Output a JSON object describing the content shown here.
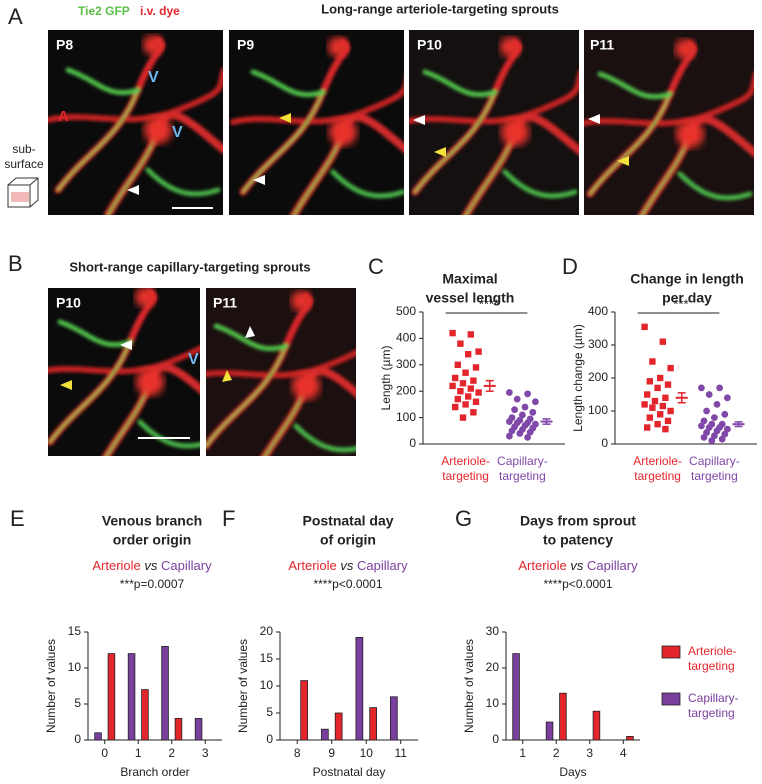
{
  "figure": {
    "A": {
      "letter": "A",
      "title": "Long-range arteriole-targeting sprouts",
      "stain_green": "Tie2 GFP",
      "stain_red": "i.v. dye",
      "side_label": [
        "sub-",
        "surface"
      ],
      "images": [
        {
          "age": "P8",
          "labels": [
            "V",
            "V",
            "A"
          ]
        },
        {
          "age": "P9"
        },
        {
          "age": "P10"
        },
        {
          "age": "P11"
        }
      ]
    },
    "B": {
      "letter": "B",
      "title": "Short-range capillary-targeting sprouts",
      "images": [
        {
          "age": "P10",
          "labels": [
            "V"
          ]
        },
        {
          "age": "P11"
        }
      ]
    }
  },
  "chart_data": [
    {
      "panel": "C",
      "type": "dot",
      "title": [
        "Maximal",
        "vessel length"
      ],
      "ylabel": "Length (µm)",
      "significance": "****",
      "ylim": [
        0,
        500
      ],
      "yticks": [
        0,
        100,
        200,
        300,
        400,
        500
      ],
      "categories": [
        [
          "Arteriole-",
          "targeting"
        ],
        [
          "Capillary-",
          "targeting"
        ]
      ],
      "groups": [
        {
          "color": "#e3262c",
          "marker": "square",
          "values": [
            420,
            415,
            380,
            350,
            340,
            300,
            290,
            270,
            250,
            240,
            230,
            220,
            210,
            200,
            195,
            180,
            170,
            160,
            150,
            140,
            120,
            100
          ],
          "mean": 220,
          "error": 20
        },
        {
          "color": "#8048a8",
          "marker": "circle",
          "values": [
            195,
            190,
            170,
            160,
            140,
            130,
            120,
            110,
            100,
            95,
            90,
            85,
            80,
            80,
            75,
            70,
            65,
            60,
            55,
            50,
            45,
            40,
            30,
            25
          ],
          "mean": 85,
          "error": 10
        }
      ]
    },
    {
      "panel": "D",
      "type": "dot",
      "title": [
        "Change in length",
        "per day"
      ],
      "ylabel": "Length change (µm)",
      "significance": "***",
      "ylim": [
        0,
        400
      ],
      "yticks": [
        0,
        100,
        200,
        300,
        400
      ],
      "categories": [
        [
          "Arteriole-",
          "targeting"
        ],
        [
          "Capillary-",
          "targeting"
        ]
      ],
      "groups": [
        {
          "color": "#e3262c",
          "marker": "square",
          "values": [
            355,
            310,
            250,
            230,
            200,
            190,
            180,
            170,
            150,
            140,
            130,
            120,
            115,
            110,
            100,
            90,
            80,
            70,
            60,
            50,
            45
          ],
          "mean": 140,
          "error": 15
        },
        {
          "color": "#8048a8",
          "marker": "circle",
          "values": [
            170,
            170,
            150,
            140,
            120,
            100,
            90,
            80,
            70,
            60,
            60,
            55,
            50,
            50,
            45,
            40,
            35,
            30,
            25,
            20,
            15,
            10
          ],
          "mean": 60,
          "error": 7
        }
      ]
    },
    {
      "panel": "E",
      "type": "bar",
      "title": [
        "Venous branch",
        "order origin"
      ],
      "comparison": [
        "Arteriole",
        "vs",
        "Capillary"
      ],
      "p_value": "***p=0.0007",
      "xlabel": "Branch order",
      "ylabel": "Number of values",
      "ylim": [
        0,
        15
      ],
      "yticks": [
        0,
        5,
        10,
        15
      ],
      "categories": [
        "0",
        "1",
        "2",
        "3"
      ],
      "series": [
        {
          "color": "#e3262c",
          "values": [
            12,
            7,
            3,
            0
          ]
        },
        {
          "color": "#7a3f9d",
          "values": [
            1,
            12,
            13,
            3
          ]
        }
      ]
    },
    {
      "panel": "F",
      "type": "bar",
      "title": [
        "Postnatal day",
        "of origin"
      ],
      "comparison": [
        "Arteriole",
        "vs",
        "Capillary"
      ],
      "p_value": "****p<0.0001",
      "xlabel": "Postnatal day",
      "ylabel": "Number of values",
      "ylim": [
        0,
        20
      ],
      "yticks": [
        0,
        5,
        10,
        15,
        20
      ],
      "categories": [
        "8",
        "9",
        "10",
        "11"
      ],
      "series": [
        {
          "color": "#e3262c",
          "values": [
            11,
            5,
            6,
            0
          ]
        },
        {
          "color": "#7a3f9d",
          "values": [
            0,
            2,
            19,
            8
          ]
        }
      ]
    },
    {
      "panel": "G",
      "type": "bar",
      "title": [
        "Days from sprout",
        "to patency"
      ],
      "comparison": [
        "Arteriole",
        "vs",
        "Capillary"
      ],
      "p_value": "****p<0.0001",
      "xlabel": "Days",
      "ylabel": "Number of values",
      "ylim": [
        0,
        30
      ],
      "yticks": [
        0,
        10,
        20,
        30
      ],
      "categories": [
        "1",
        "2",
        "3",
        "4"
      ],
      "legend": "right",
      "series": [
        {
          "name": [
            "Arteriole-",
            "targeting"
          ],
          "color": "#e3262c",
          "values": [
            0,
            13,
            8,
            1
          ]
        },
        {
          "name": [
            "Capillary-",
            "targeting"
          ],
          "color": "#7a3f9d",
          "values": [
            24,
            5,
            0,
            0
          ]
        }
      ]
    }
  ]
}
